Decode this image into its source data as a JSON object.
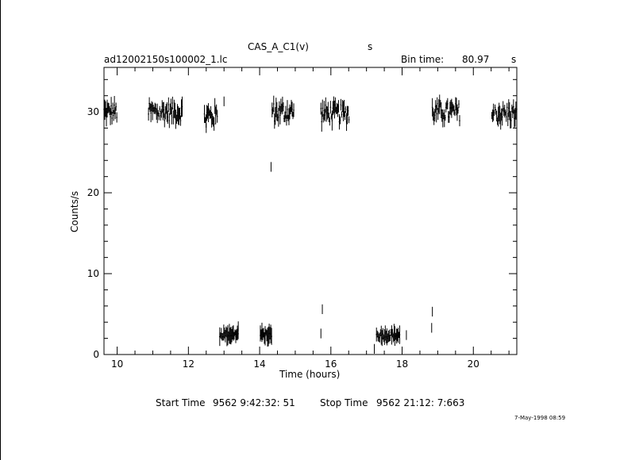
{
  "header": {
    "title": "CAS_A_C1(v)",
    "title_unit": "s",
    "file_name": "ad12002150s100002_1.lc",
    "bin_time_label": "Bin time:",
    "bin_time_value": "80.97",
    "bin_time_unit": "s"
  },
  "footer": {
    "start_label": "Start Time",
    "start_value": "9562  9:42:32: 51",
    "stop_label": "Stop Time",
    "stop_value": "9562 21:12: 7:663",
    "timestamp": "7-May-1998 08:59"
  },
  "chart_data": {
    "type": "scatter",
    "xlabel": "Time (hours)",
    "ylabel": "Counts/s",
    "xlim": [
      9.63,
      21.22
    ],
    "ylim": [
      0,
      35.5
    ],
    "x_ticks": [
      10,
      12,
      14,
      16,
      18,
      20
    ],
    "y_ticks": [
      0,
      10,
      20,
      30
    ],
    "grid": false,
    "legend": "none",
    "segments": [
      {
        "x_start": 9.63,
        "x_end": 10.0,
        "level": 30.0,
        "noise": 1.0
      },
      {
        "x_start": 10.88,
        "x_end": 11.83,
        "level": 30.0,
        "noise": 1.1
      },
      {
        "x_start": 12.45,
        "x_end": 12.82,
        "level": 29.5,
        "noise": 1.3
      },
      {
        "x_start": 12.88,
        "x_end": 13.4,
        "level": 2.5,
        "noise": 0.4
      },
      {
        "x_start": 14.02,
        "x_end": 14.35,
        "level": 2.4,
        "noise": 0.4
      },
      {
        "x_start": 14.35,
        "x_end": 14.98,
        "level": 30.0,
        "noise": 1.2
      },
      {
        "x_start": 15.72,
        "x_end": 16.52,
        "level": 29.8,
        "noise": 1.1
      },
      {
        "x_start": 17.28,
        "x_end": 17.95,
        "level": 2.4,
        "noise": 0.4
      },
      {
        "x_start": 18.85,
        "x_end": 19.62,
        "level": 30.0,
        "noise": 1.1
      },
      {
        "x_start": 20.52,
        "x_end": 21.22,
        "level": 29.8,
        "noise": 1.1
      }
    ],
    "points": [
      {
        "x": 13.4,
        "y": 3.5
      },
      {
        "x": 14.02,
        "y": 3.0
      },
      {
        "x": 14.32,
        "y": 23.2
      },
      {
        "x": 15.72,
        "y": 2.6
      },
      {
        "x": 15.76,
        "y": 5.6
      },
      {
        "x": 17.22,
        "y": 0.7
      },
      {
        "x": 18.12,
        "y": 2.4
      },
      {
        "x": 18.83,
        "y": 3.3
      },
      {
        "x": 18.85,
        "y": 5.3
      },
      {
        "x": 12.5,
        "y": 28.0
      },
      {
        "x": 13.0,
        "y": 31.3
      }
    ]
  }
}
